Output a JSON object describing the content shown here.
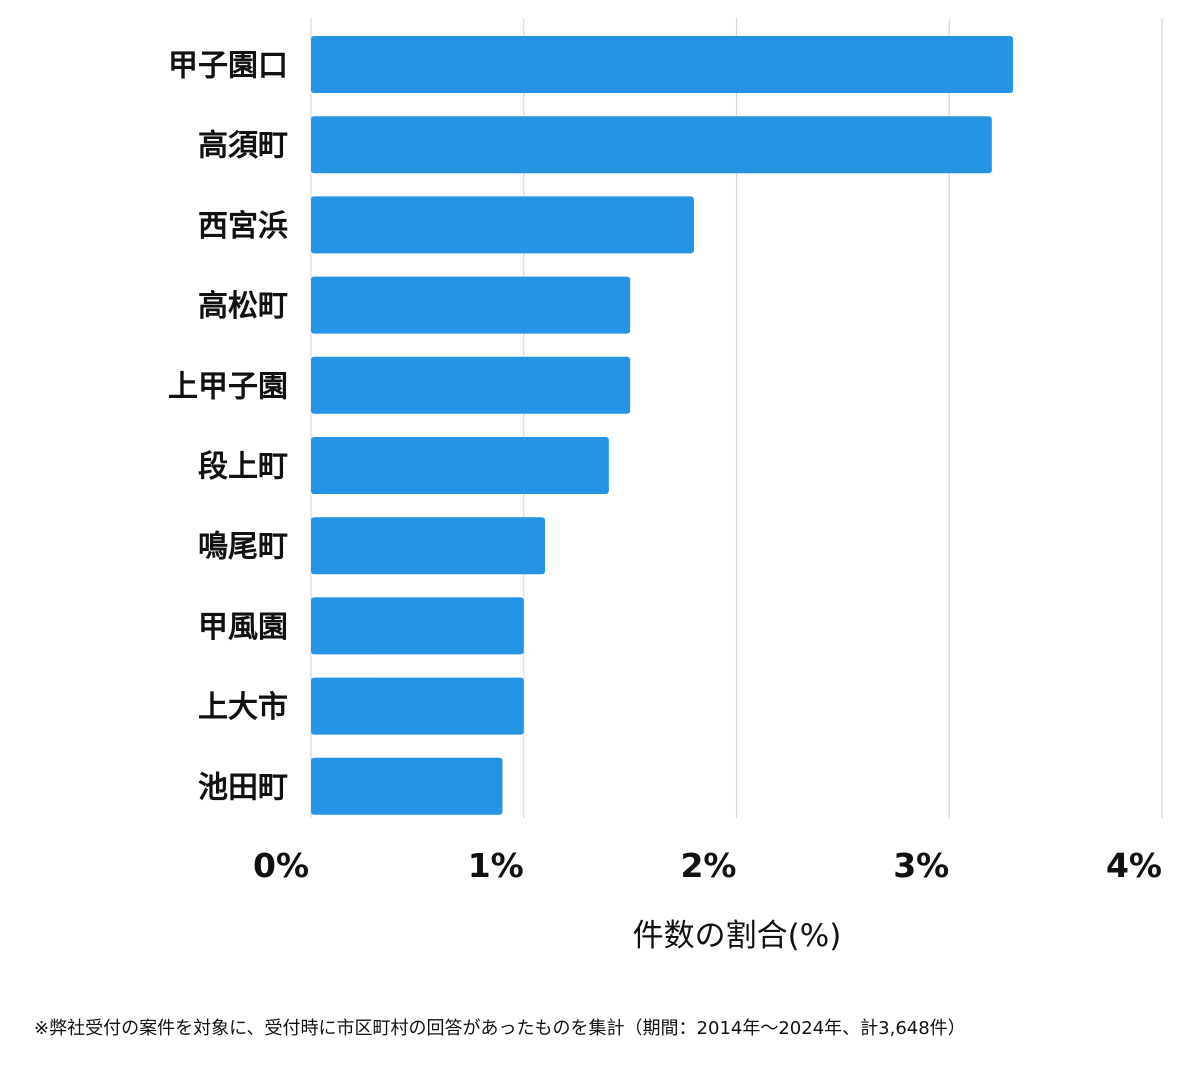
{
  "chart_data": {
    "type": "bar",
    "orientation": "horizontal",
    "categories": [
      "甲子園口",
      "高須町",
      "西宮浜",
      "高松町",
      "上甲子園",
      "段上町",
      "鳴尾町",
      "甲風園",
      "上大市",
      "池田町"
    ],
    "values": [
      3.3,
      3.2,
      1.8,
      1.5,
      1.5,
      1.4,
      1.1,
      1.0,
      1.0,
      0.9
    ],
    "xlabel": "件数の割合(%)",
    "xlim": [
      0,
      4
    ],
    "ticks": [
      {
        "value": 0,
        "label": "0%"
      },
      {
        "value": 1,
        "label": "1%"
      },
      {
        "value": 2,
        "label": "2%"
      },
      {
        "value": 3,
        "label": "3%"
      },
      {
        "value": 4,
        "label": "4%"
      }
    ],
    "grid": true,
    "bar_color": "#2594e4",
    "grid_color": "#d9d9d9"
  },
  "footnote": "※弊社受付の案件を対象に、受付時に市区町村の回答があったものを集計（期間：2014年～2024年、計3,648件）"
}
